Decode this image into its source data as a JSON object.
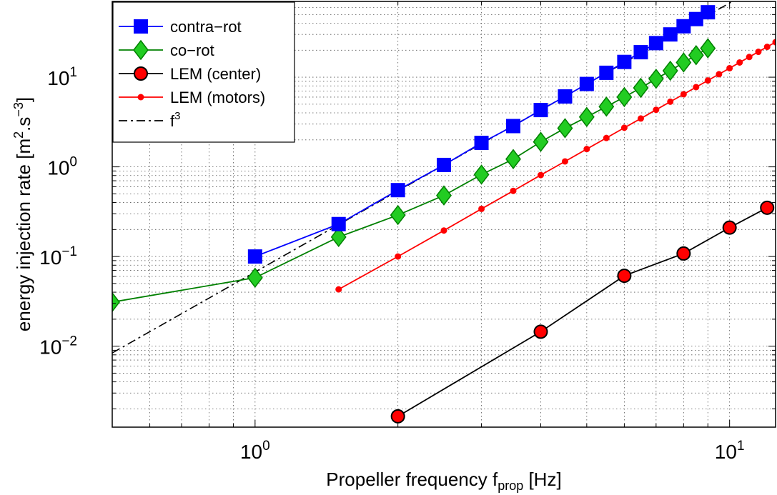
{
  "chart_data": {
    "type": "line",
    "xscale": "log",
    "yscale": "log",
    "xlim": [
      0.5,
      12.5
    ],
    "ylim": [
      0.00125,
      70
    ],
    "grid": true,
    "minor_grid": true,
    "legend_position": "top-left",
    "xlabel": {
      "main": "Propeller frequency f",
      "sub": "prop",
      "tail": " [Hz]"
    },
    "ylabel": {
      "main": "energy injection rate [m",
      "sup1": "2",
      "mid": ".s",
      "sup2": "−3",
      "tail": "]"
    },
    "x_ticks": [
      {
        "value": 1,
        "base": "10",
        "exp": "0"
      },
      {
        "value": 10,
        "base": "10",
        "exp": "1"
      }
    ],
    "y_ticks": [
      {
        "value": 0.01,
        "base": "10",
        "exp": "−2"
      },
      {
        "value": 0.1,
        "base": "10",
        "exp": "−1"
      },
      {
        "value": 1,
        "base": "10",
        "exp": "0"
      },
      {
        "value": 10,
        "base": "10",
        "exp": "1"
      }
    ],
    "series": [
      {
        "name": "contra−rot",
        "color": "#0000ff",
        "marker": "square",
        "marker_fill": "#0000ff",
        "line_style": "solid",
        "x": [
          1.0,
          1.5,
          2.0,
          2.5,
          3.0,
          3.5,
          4.0,
          4.5,
          5.0,
          5.5,
          6.0,
          6.5,
          7.0,
          7.5,
          8.0,
          8.5,
          9.0
        ],
        "y": [
          0.1,
          0.23,
          0.55,
          1.05,
          1.85,
          2.85,
          4.3,
          6.1,
          8.4,
          11.2,
          14.8,
          19.0,
          24.0,
          30.0,
          37.0,
          44.5,
          53.0
        ]
      },
      {
        "name": "co−rot",
        "color": "#008000",
        "marker": "diamond",
        "marker_fill": "#22cc22",
        "line_style": "solid",
        "x": [
          0.5,
          1.0,
          1.5,
          2.0,
          2.5,
          3.0,
          3.5,
          4.0,
          4.5,
          5.0,
          5.5,
          6.0,
          6.5,
          7.0,
          7.5,
          8.0,
          8.5,
          9.0
        ],
        "y": [
          0.031,
          0.058,
          0.165,
          0.29,
          0.48,
          0.82,
          1.22,
          1.9,
          2.7,
          3.6,
          4.7,
          6.0,
          7.6,
          9.6,
          11.8,
          14.6,
          17.6,
          21.0
        ]
      },
      {
        "name": "LEM (center)",
        "color": "#000000",
        "marker": "circle",
        "marker_fill": "#ff0000",
        "line_style": "solid",
        "x": [
          2.0,
          4.0,
          6.0,
          8.0,
          10.0,
          12.0
        ],
        "y": [
          0.00165,
          0.0145,
          0.061,
          0.108,
          0.21,
          0.35
        ]
      },
      {
        "name": "LEM (motors)",
        "color": "#ff0000",
        "marker": "dot",
        "marker_fill": "#ff0000",
        "line_style": "solid",
        "x": [
          1.5,
          2.0,
          2.5,
          3.0,
          3.5,
          4.0,
          4.5,
          5.0,
          5.5,
          6.0,
          6.5,
          7.0,
          7.5,
          8.0,
          8.5,
          9.0,
          9.5,
          10.0,
          10.5,
          11.0,
          11.5,
          12.0,
          12.5
        ],
        "y": [
          0.043,
          0.1,
          0.195,
          0.34,
          0.54,
          0.81,
          1.15,
          1.58,
          2.1,
          2.73,
          3.46,
          4.33,
          5.33,
          6.45,
          7.75,
          9.2,
          10.8,
          12.6,
          14.6,
          16.8,
          19.2,
          21.8,
          24.6
        ]
      },
      {
        "name": "f³",
        "color": "#000000",
        "marker": "none",
        "line_style": "dashdot",
        "x": [
          0.5,
          12.5
        ],
        "y": [
          0.0084,
          131.25
        ]
      }
    ],
    "legend_entries": [
      {
        "label": "contra−rot"
      },
      {
        "label": "co−rot"
      },
      {
        "label": "LEM (center)"
      },
      {
        "label": "LEM (motors)"
      },
      {
        "label": "f",
        "sup": "3"
      }
    ]
  }
}
